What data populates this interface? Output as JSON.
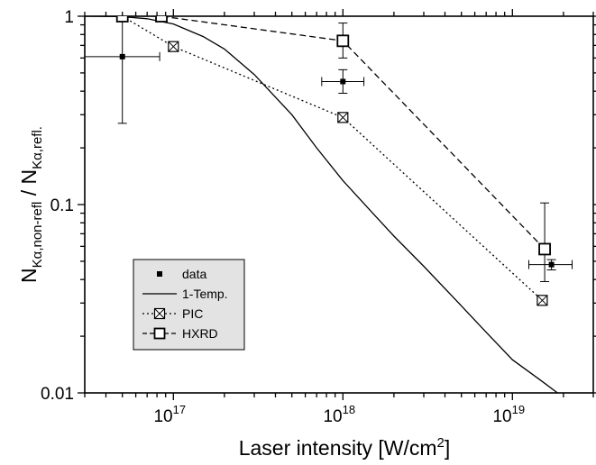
{
  "chart_data": {
    "type": "scatter",
    "xscale": "log",
    "yscale": "log",
    "xlim": [
      3e+16,
      3e+19
    ],
    "ylim": [
      0.01,
      1
    ],
    "grid": false,
    "legend_position": "bottom-left",
    "xlabel": "Laser intensity [W/cm²]",
    "xlabel_main": "Laser intensity [W/cm",
    "xlabel_sup": "2",
    "xlabel_tail": "]",
    "ylabel": "N_Kα,non-refl / N_Kα,refl.",
    "ylabel_n1": "N",
    "ylabel_sub1": "Kα,non-refl",
    "ylabel_mid": " / N",
    "ylabel_sub2": "Kα,refl.",
    "x_ticks": [
      {
        "value": 1e+17,
        "base": "10",
        "exp": "17"
      },
      {
        "value": 1e+18,
        "base": "10",
        "exp": "18"
      },
      {
        "value": 1e+19,
        "base": "10",
        "exp": "19"
      }
    ],
    "y_ticks": [
      {
        "value": 1,
        "label": "1"
      },
      {
        "value": 0.1,
        "label": "0.1"
      },
      {
        "value": 0.01,
        "label": "0.01"
      }
    ],
    "series": [
      {
        "name": "data",
        "style": "filled-square",
        "points": [
          {
            "x": 5e+16,
            "y": 0.61,
            "xerr": [
              2.8e+16,
              8.3e+16
            ],
            "yerr": [
              0.27,
              1.0
            ]
          },
          {
            "x": 1e+18,
            "y": 0.45,
            "xerr": [
              7.5e+17,
              1.33e+18
            ],
            "yerr": [
              0.39,
              0.52
            ]
          },
          {
            "x": 1.7e+19,
            "y": 0.048,
            "xerr": [
              1.25e+19,
              2.25e+19
            ],
            "yerr": [
              0.045,
              0.051
            ]
          }
        ]
      },
      {
        "name": "1-Temp.",
        "style": "solid-line",
        "points": [
          {
            "x": 3e+16,
            "y": 1.0
          },
          {
            "x": 5e+16,
            "y": 0.995
          },
          {
            "x": 7e+16,
            "y": 0.97
          },
          {
            "x": 1e+17,
            "y": 0.91
          },
          {
            "x": 1.5e+17,
            "y": 0.78
          },
          {
            "x": 2e+17,
            "y": 0.67
          },
          {
            "x": 3e+17,
            "y": 0.49
          },
          {
            "x": 5e+17,
            "y": 0.3
          },
          {
            "x": 7e+17,
            "y": 0.2
          },
          {
            "x": 1e+18,
            "y": 0.134
          },
          {
            "x": 1.5e+18,
            "y": 0.09
          },
          {
            "x": 2e+18,
            "y": 0.068
          },
          {
            "x": 3e+18,
            "y": 0.047
          },
          {
            "x": 5e+18,
            "y": 0.029
          },
          {
            "x": 7e+18,
            "y": 0.021
          },
          {
            "x": 1e+19,
            "y": 0.015
          },
          {
            "x": 1.5e+19,
            "y": 0.0115
          },
          {
            "x": 1.9e+19,
            "y": 0.0098
          }
        ]
      },
      {
        "name": "PIC",
        "style": "crossed-square-dotted",
        "points": [
          {
            "x": 5e+16,
            "y": 1.0
          },
          {
            "x": 1e+17,
            "y": 0.69
          },
          {
            "x": 1e+18,
            "y": 0.29
          },
          {
            "x": 1.5e+19,
            "y": 0.031
          }
        ]
      },
      {
        "name": "HXRD",
        "style": "open-square-dashed",
        "points": [
          {
            "x": 5e+16,
            "y": 1.0,
            "yerr": null
          },
          {
            "x": 8.5e+16,
            "y": 1.0,
            "yerr": null
          },
          {
            "x": 1e+18,
            "y": 0.74,
            "yerr": [
              0.6,
              0.92
            ]
          },
          {
            "x": 1.55e+19,
            "y": 0.058,
            "yerr": [
              0.039,
              0.102
            ]
          }
        ]
      }
    ]
  }
}
